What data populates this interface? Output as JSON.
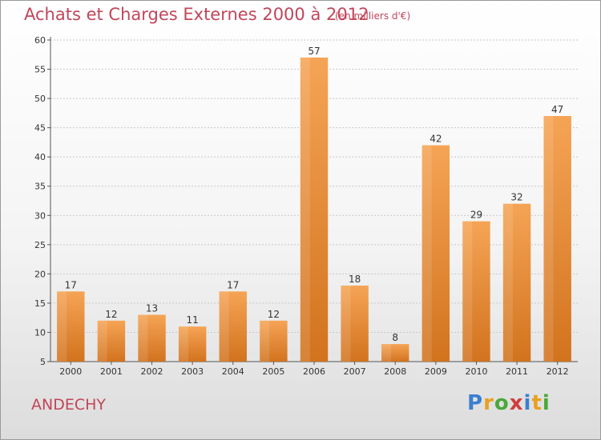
{
  "chart_data": {
    "type": "bar",
    "title": "Achats et Charges Externes 2000 à 2012",
    "subtitle": "(en milliers d'€)",
    "categories": [
      "2000",
      "2001",
      "2002",
      "2003",
      "2004",
      "2005",
      "2006",
      "2007",
      "2008",
      "2009",
      "2010",
      "2011",
      "2012"
    ],
    "values": [
      17,
      12,
      13,
      11,
      17,
      12,
      57,
      18,
      8,
      42,
      29,
      32,
      47
    ],
    "ylim": [
      5,
      60
    ],
    "yticks": [
      5,
      10,
      15,
      20,
      25,
      30,
      35,
      40,
      45,
      50,
      55,
      60
    ],
    "grid": true,
    "bar_color": "#f0953a",
    "bar_color_light": "#f5a455",
    "bar_color_dark": "#d2731e"
  },
  "commune": "ANDECHY",
  "logo": {
    "letters": [
      "P",
      "r",
      "o",
      "x",
      "i",
      "t",
      "i"
    ],
    "colors": [
      "#3a7fd0",
      "#e8a020",
      "#4aa83a",
      "#d23c3c",
      "#3a7fd0",
      "#e8a020",
      "#4aa83a"
    ]
  }
}
